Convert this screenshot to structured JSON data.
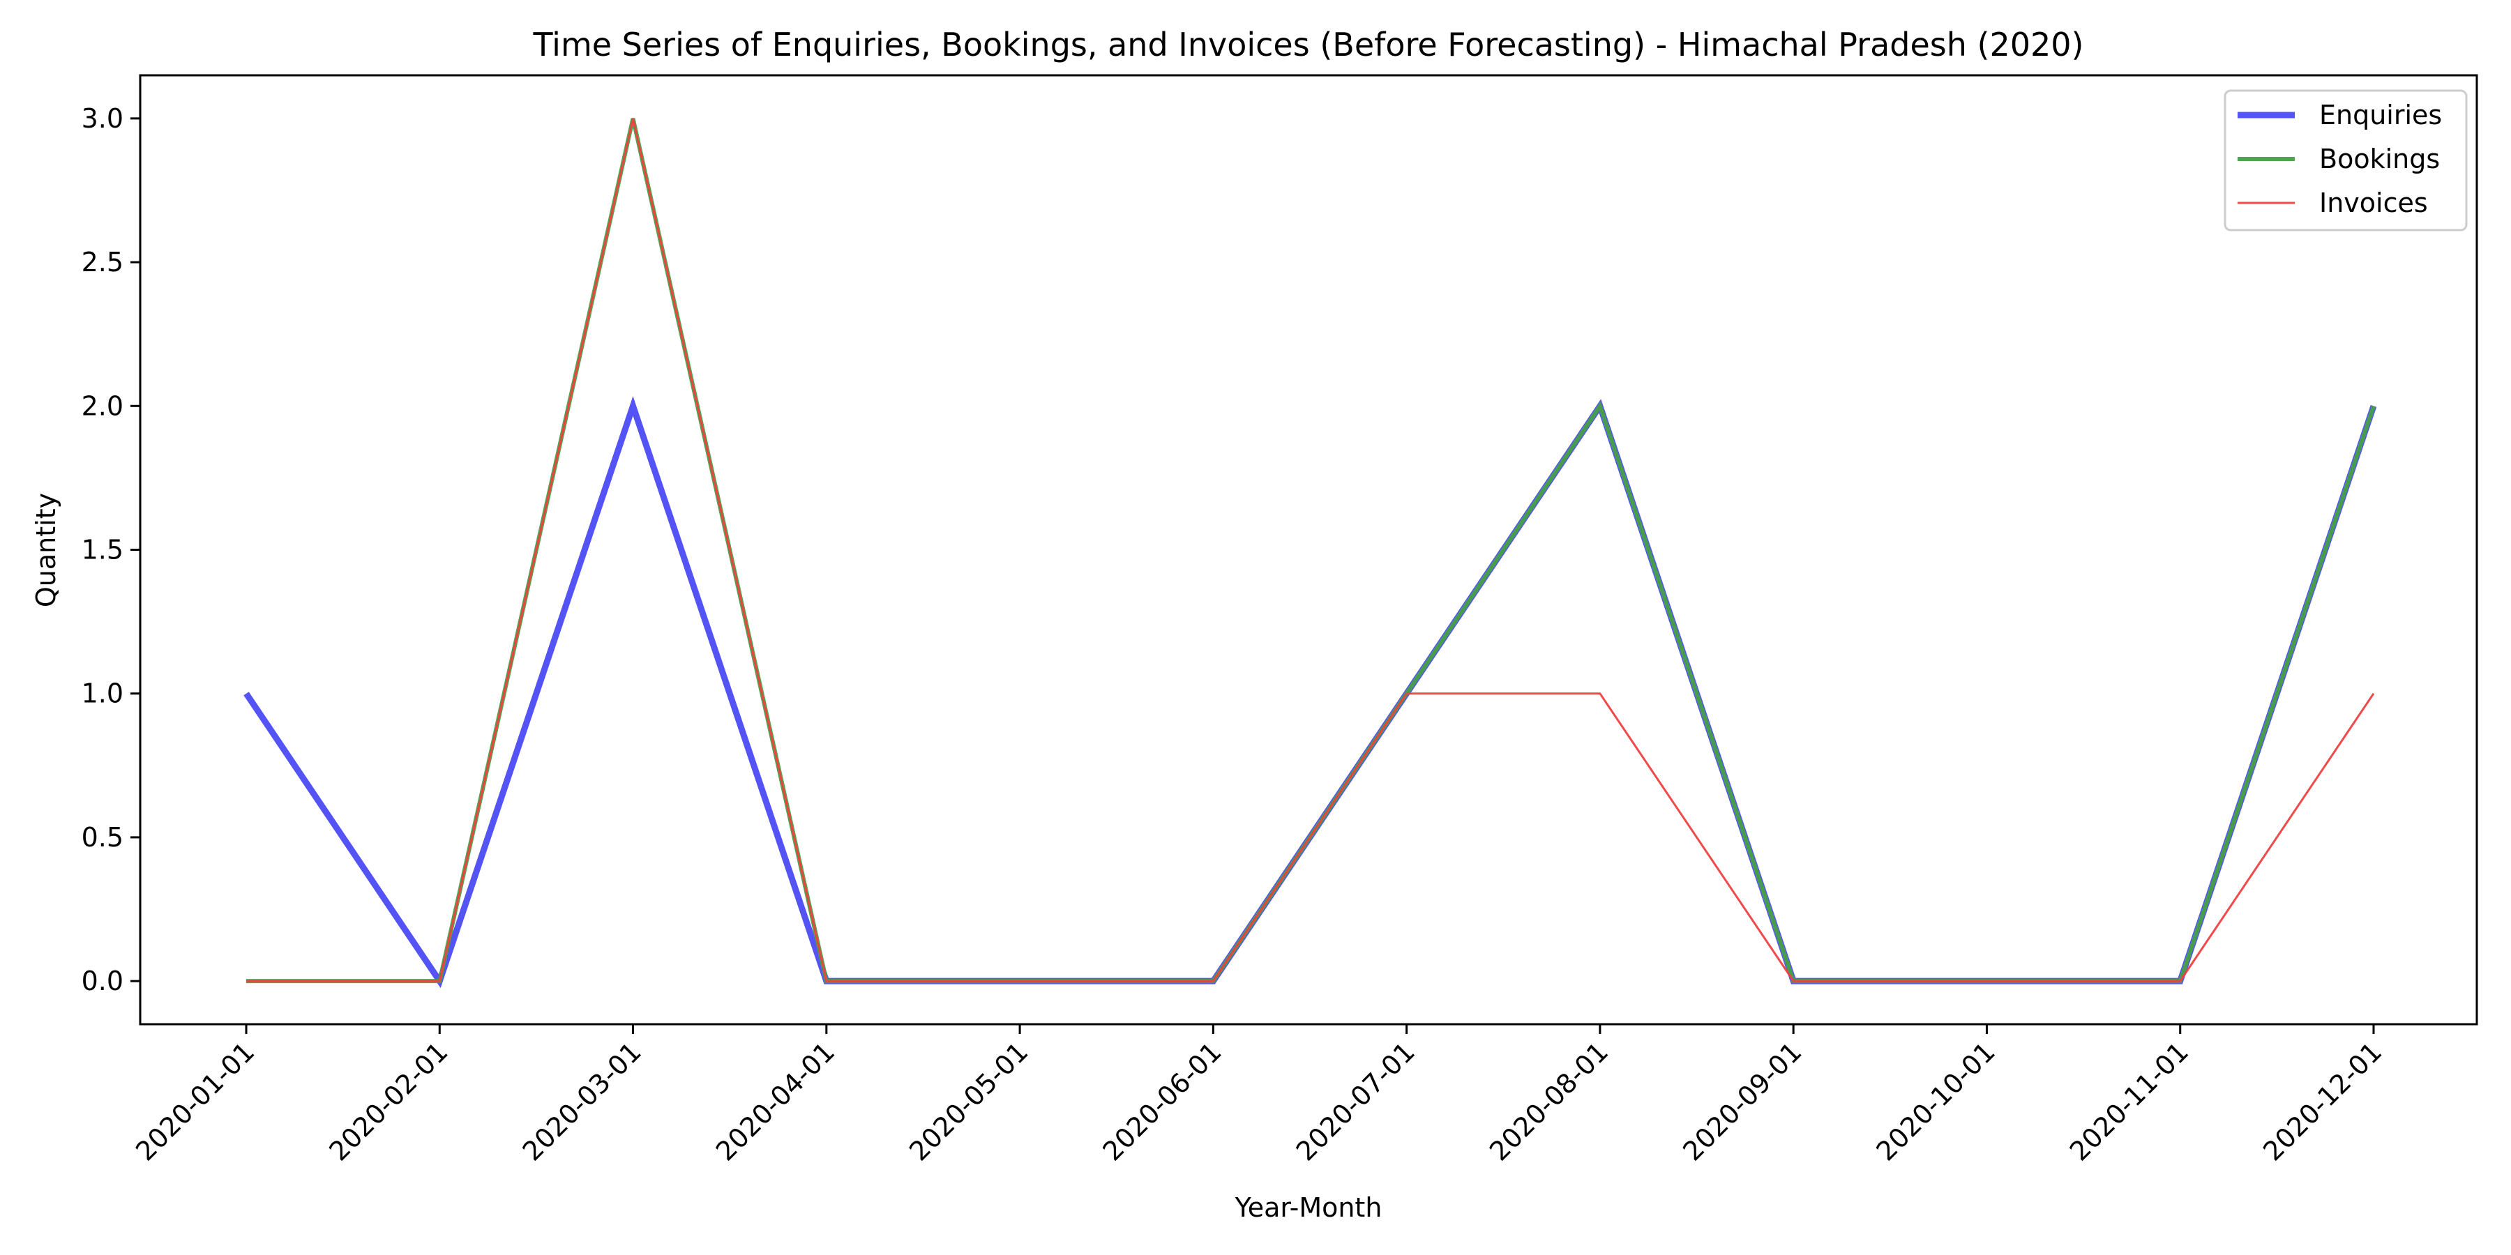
{
  "chart_data": {
    "type": "line",
    "title": "Time Series of Enquiries, Bookings, and Invoices (Before Forecasting) - Himachal Pradesh (2020)",
    "xlabel": "Year-Month",
    "ylabel": "Quantity",
    "x": [
      "2020-01-01",
      "2020-02-01",
      "2020-03-01",
      "2020-04-01",
      "2020-05-01",
      "2020-06-01",
      "2020-07-01",
      "2020-08-01",
      "2020-09-01",
      "2020-10-01",
      "2020-11-01",
      "2020-12-01"
    ],
    "ylim": [
      -0.15,
      3.15
    ],
    "yticks": [
      "0.0",
      "0.5",
      "1.0",
      "1.5",
      "2.0",
      "2.5",
      "3.0"
    ],
    "grid": false,
    "legend_position": "top-right",
    "series": [
      {
        "name": "Enquiries",
        "color": "#4b4bf5",
        "x": [
          "2020-01-01",
          "2020-02-01",
          "2020-03-01",
          "2020-04-01",
          "2020-06-01",
          "2020-07-01",
          "2020-08-01",
          "2020-09-01",
          "2020-11-01",
          "2020-12-01"
        ],
        "values": [
          1,
          0,
          2,
          0,
          0,
          1,
          2,
          0,
          0,
          2
        ]
      },
      {
        "name": "Bookings",
        "color": "#47a047",
        "x": [
          "2020-01-01",
          "2020-02-01",
          "2020-03-01",
          "2020-04-01",
          "2020-06-01",
          "2020-07-01",
          "2020-08-01",
          "2020-09-01",
          "2020-11-01",
          "2020-12-01"
        ],
        "values": [
          0,
          0,
          3,
          0,
          0,
          1,
          2,
          0,
          0,
          2
        ]
      },
      {
        "name": "Invoices",
        "color": "#f04040",
        "x": [
          "2020-01-01",
          "2020-02-01",
          "2020-03-01",
          "2020-04-01",
          "2020-06-01",
          "2020-07-01",
          "2020-08-01",
          "2020-09-01",
          "2020-11-01",
          "2020-12-01"
        ],
        "values": [
          0,
          0,
          3,
          0,
          0,
          1,
          1,
          0,
          0,
          1
        ]
      }
    ]
  }
}
